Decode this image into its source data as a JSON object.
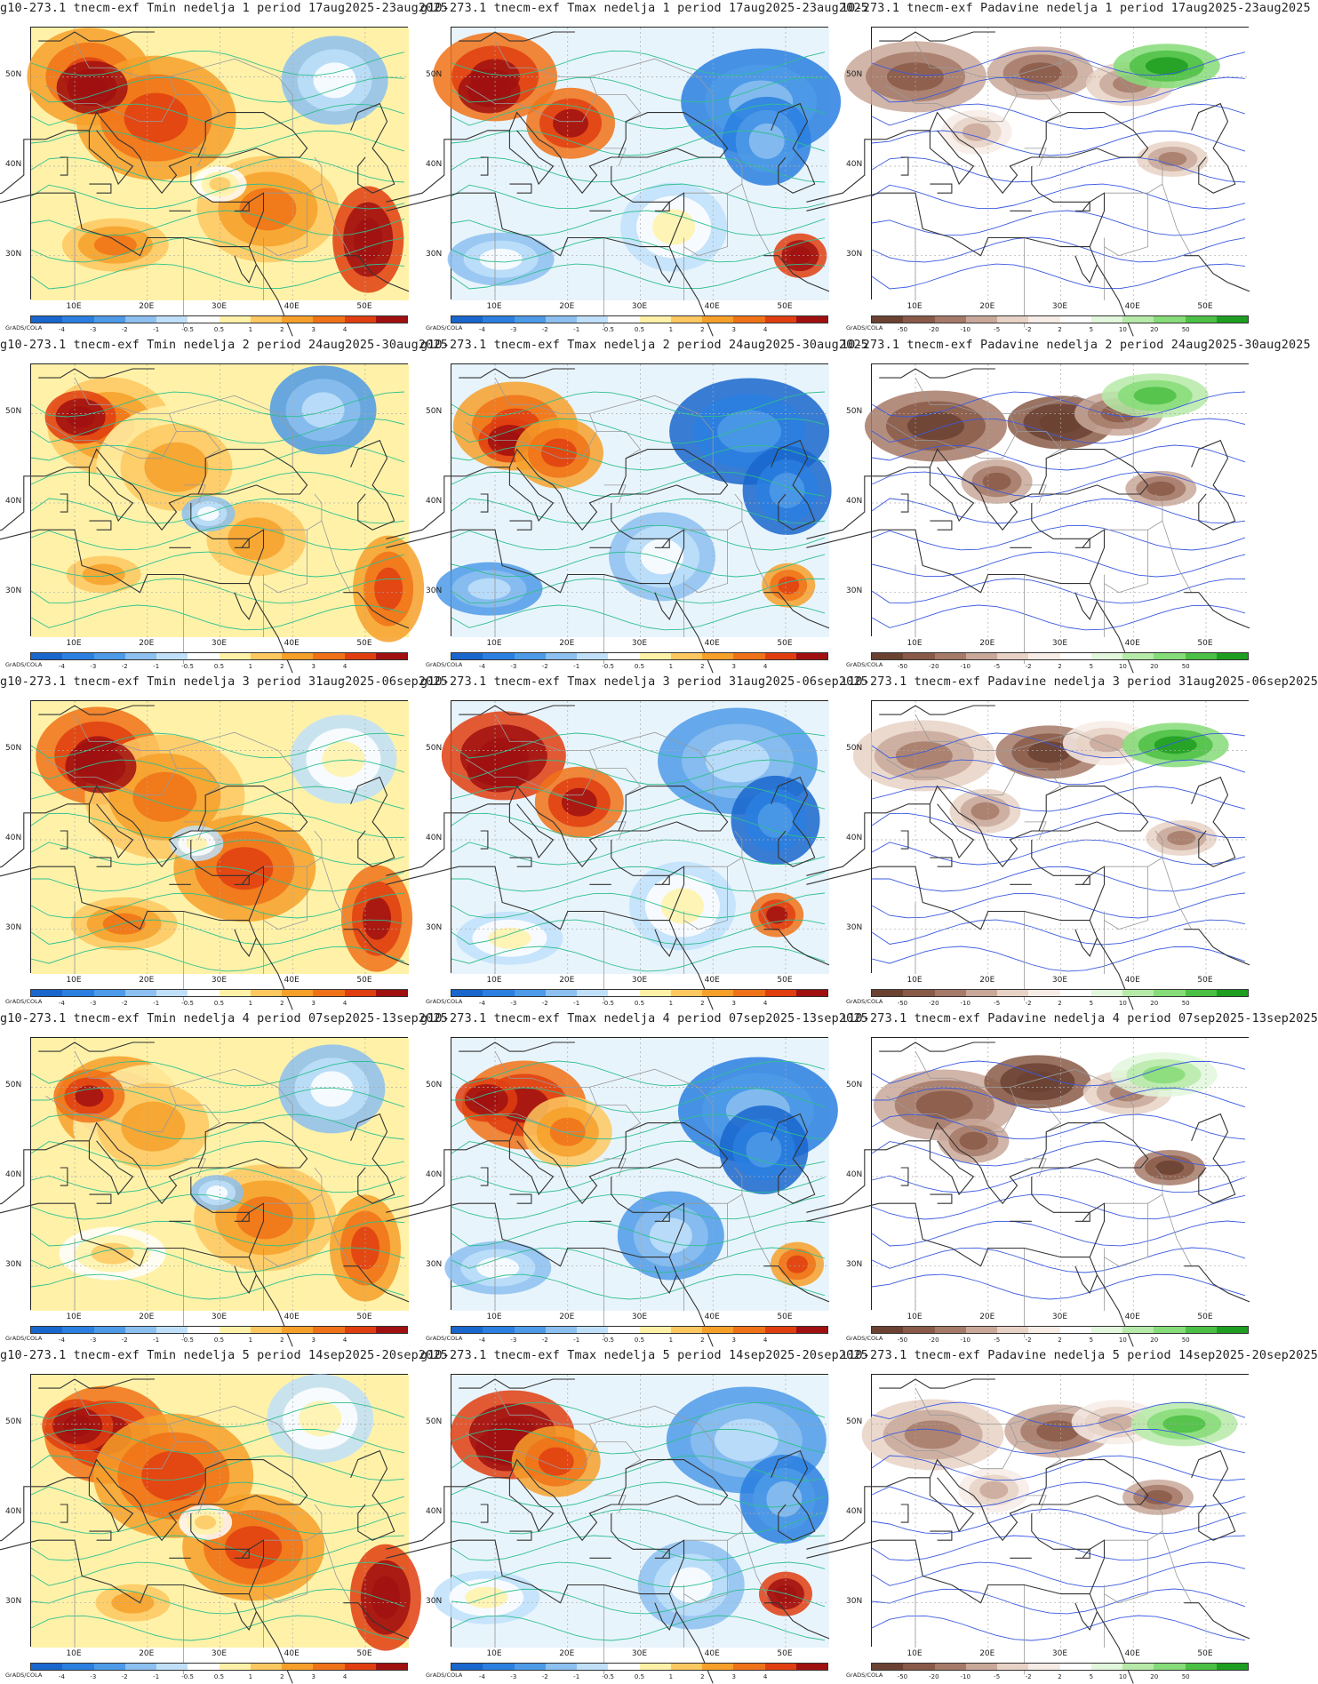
{
  "credit": "GrADS/COLA",
  "lat_labels": [
    "50N",
    "40N",
    "30N"
  ],
  "lon_labels": [
    "10E",
    "20E",
    "30E",
    "40E",
    "50E"
  ],
  "scales": {
    "Tmin": {
      "ticks": [
        "-4",
        "-3",
        "-2",
        "-1",
        "-0.5",
        "0.5",
        "1",
        "2",
        "3",
        "4"
      ],
      "colors": [
        "#1966cd",
        "#2a7fe0",
        "#4d9ae8",
        "#8cc0f0",
        "#c0e0fa",
        "#ffffff",
        "#fff2a8",
        "#fdc860",
        "#f6a02a",
        "#f07218",
        "#e03e10",
        "#a01010"
      ]
    },
    "Tmax": {
      "ticks": [
        "-4",
        "-3",
        "-2",
        "-1",
        "-0.5",
        "0.5",
        "1",
        "2",
        "3",
        "4"
      ],
      "colors": [
        "#1966cd",
        "#2a7fe0",
        "#4d9ae8",
        "#8cc0f0",
        "#c0e0fa",
        "#ffffff",
        "#fff2a8",
        "#fdc860",
        "#f6a02a",
        "#f07218",
        "#e03e10",
        "#a01010"
      ]
    },
    "Padavine": {
      "ticks": [
        "-50",
        "-20",
        "-10",
        "-5",
        "-2",
        "2",
        "5",
        "10",
        "20",
        "50"
      ],
      "colors": [
        "#6b4232",
        "#8a5a48",
        "#a67a68",
        "#c9a89a",
        "#e8d2c6",
        "#f7ece6",
        "#ffffff",
        "#e2f7dc",
        "#b6eaa8",
        "#86dc78",
        "#4cc044",
        "#1e9e20"
      ]
    }
  },
  "panels": [
    {
      "title": "g10-273.1 tnecm-exf Tmin nedelja 1 period 17aug2025-23aug2025",
      "variable": "Tmin"
    },
    {
      "title": "g10-273.1 tnecm-exf Tmax nedelja 1 period 17aug2025-23aug2025",
      "variable": "Tmax"
    },
    {
      "title": "10-273.1 tnecm-exf Padavine nedelja 1 period 17aug2025-23aug2025",
      "variable": "Padavine"
    },
    {
      "title": "g10-273.1 tnecm-exf Tmin nedelja 2 period 24aug2025-30aug2025",
      "variable": "Tmin"
    },
    {
      "title": "g10-273.1 tnecm-exf Tmax nedelja 2 period 24aug2025-30aug2025",
      "variable": "Tmax"
    },
    {
      "title": "10-273.1 tnecm-exf Padavine nedelja 2 period 24aug2025-30aug2025",
      "variable": "Padavine"
    },
    {
      "title": "g10-273.1 tnecm-exf Tmin nedelja 3 period 31aug2025-06sep2025",
      "variable": "Tmin"
    },
    {
      "title": "g10-273.1 tnecm-exf Tmax nedelja 3 period 31aug2025-06sep2025",
      "variable": "Tmax"
    },
    {
      "title": "ı10-273.1 tnecm-exf Padavine nedelja 3 period 31aug2025-06sep2025",
      "variable": "Padavine"
    },
    {
      "title": "g10-273.1 tnecm-exf Tmin nedelja 4 period 07sep2025-13sep2025",
      "variable": "Tmin"
    },
    {
      "title": "g10-273.1 tnecm-exf Tmax nedelja 4 period 07sep2025-13sep2025",
      "variable": "Tmax"
    },
    {
      "title": "ı10-273.1 tnecm-exf Padavine nedelja 4 period 07sep2025-13sep2025",
      "variable": "Padavine"
    },
    {
      "title": "g10-273.1 tnecm-exf Tmin nedelja 5 period 14sep2025-20sep2025",
      "variable": "Tmin"
    },
    {
      "title": "g10-273.1 tnecm-exf Tmax nedelja 5 period 14sep2025-20sep2025",
      "variable": "Tmax"
    },
    {
      "title": "ı10-273.1 tnecm-exf Padavine nedelja 5 period 14sep2025-20sep2025",
      "variable": "Padavine"
    }
  ]
}
